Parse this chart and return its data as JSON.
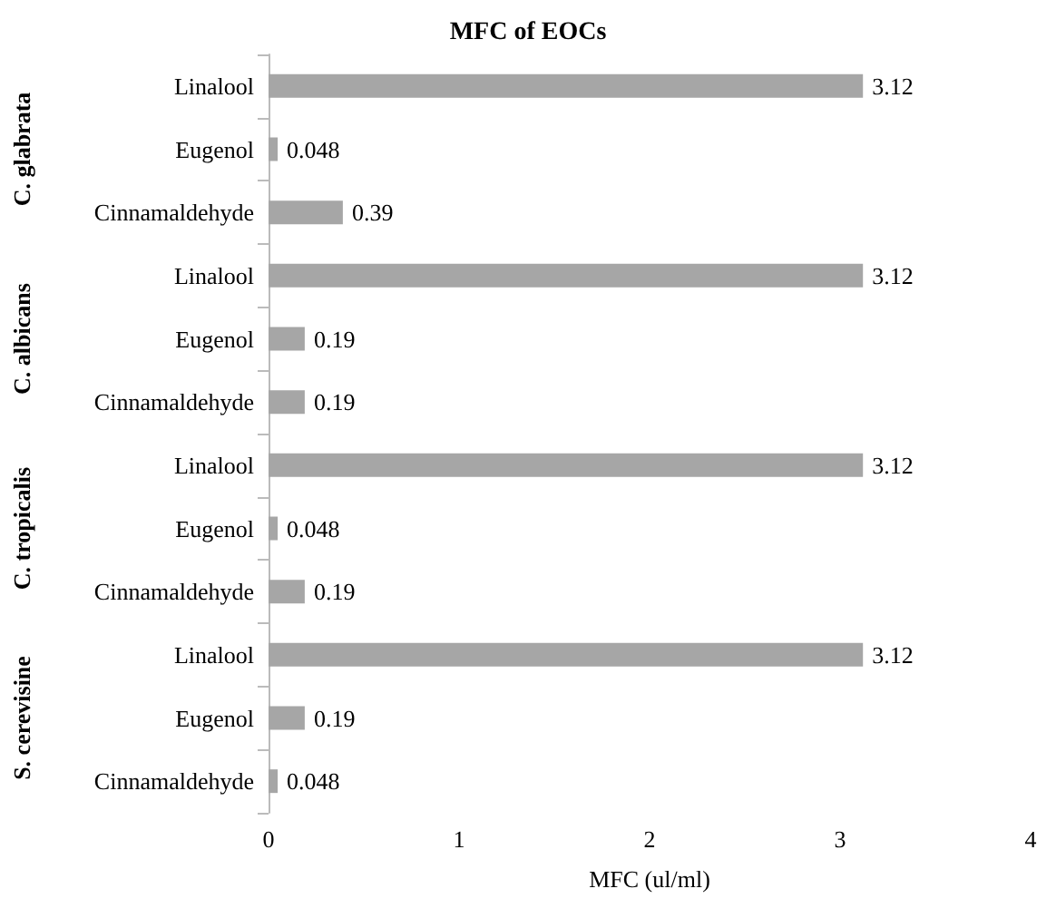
{
  "chart_data": {
    "type": "bar",
    "orientation": "horizontal",
    "title": "MFC of EOCs",
    "xlabel": "MFC (ul/ml)",
    "categories": [
      "Linalool",
      "Eugenol",
      "Cinnamaldehyde",
      "Linalool",
      "Eugenol",
      "Cinnamaldehyde",
      "Linalool",
      "Eugenol",
      "Cinnamaldehyde",
      "Linalool",
      "Eugenol",
      "Cinnamaldehyde"
    ],
    "values": [
      3.12,
      0.048,
      0.39,
      3.12,
      0.19,
      0.19,
      3.12,
      0.048,
      0.19,
      3.12,
      0.19,
      0.048
    ],
    "color": "#a6a6a6",
    "xlim": [
      0,
      4
    ],
    "xticks": [
      0,
      1,
      2,
      3,
      4
    ],
    "data_labels": true,
    "grid": false,
    "annotations": [
      "C. glabrata",
      "C. albicans",
      "C. tropicalis",
      "S. cerevisine"
    ]
  }
}
